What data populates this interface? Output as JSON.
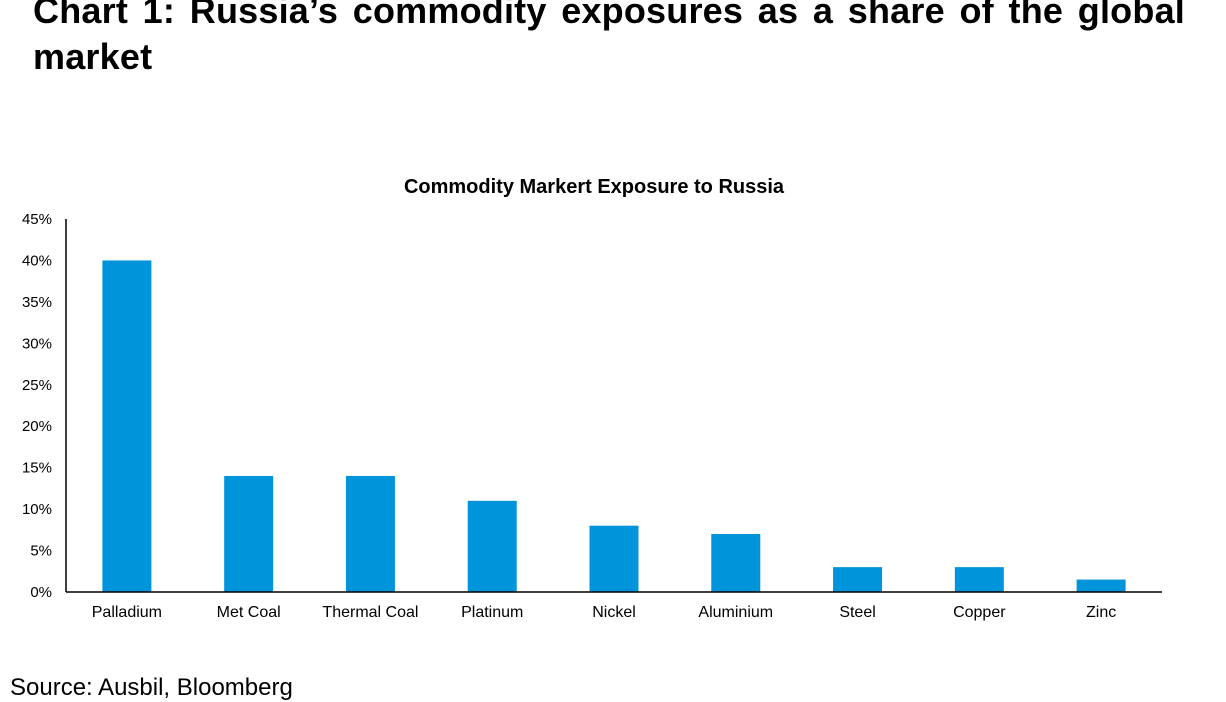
{
  "page": {
    "title": "Chart 1: Russia’s commodity exposures as a share of the global market",
    "source": "Source: Ausbil, Bloomberg"
  },
  "colors": {
    "bar": "#0095DA",
    "axis": "#000000",
    "text": "#000000"
  },
  "chart_data": {
    "type": "bar",
    "title": "Commodity Markert Exposure to Russia",
    "xlabel": "",
    "ylabel": "",
    "categories": [
      "Palladium",
      "Met Coal",
      "Thermal Coal",
      "Platinum",
      "Nickel",
      "Aluminium",
      "Steel",
      "Copper",
      "Zinc"
    ],
    "values": [
      40,
      14,
      14,
      11,
      8,
      7,
      3,
      3,
      1.5
    ],
    "unit": "%",
    "ylim": [
      0,
      45
    ],
    "yticks": [
      0,
      5,
      10,
      15,
      20,
      25,
      30,
      35,
      40,
      45
    ],
    "ytick_labels": [
      "0%",
      "5%",
      "10%",
      "15%",
      "20%",
      "25%",
      "30%",
      "35%",
      "40%",
      "45%"
    ],
    "grid": false,
    "legend": "none"
  }
}
